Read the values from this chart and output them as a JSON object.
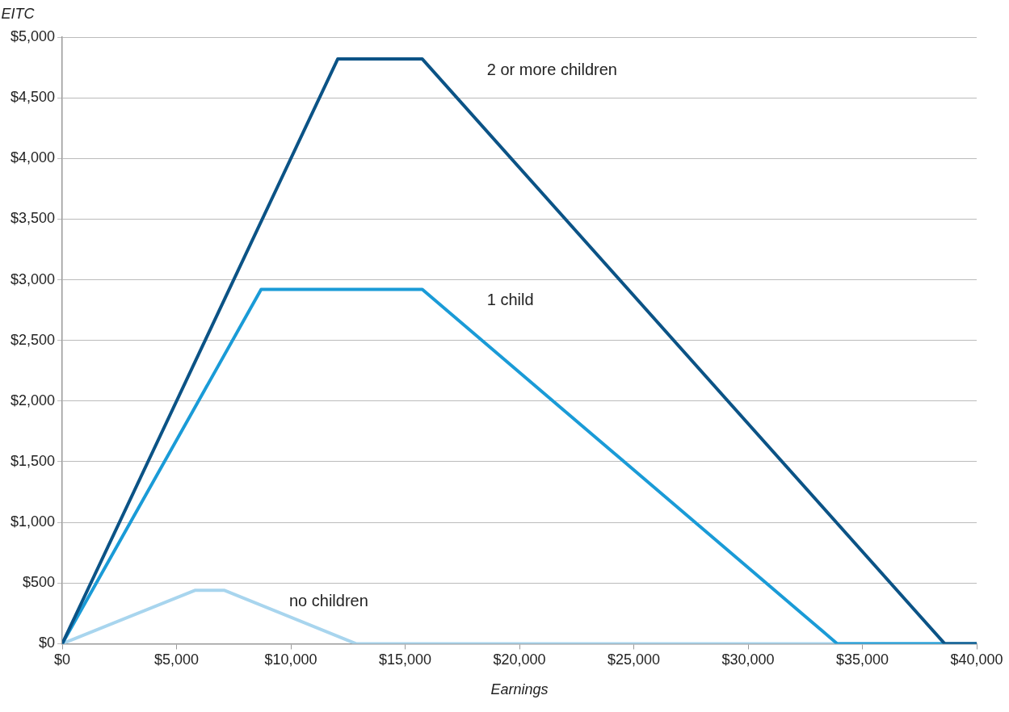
{
  "chart_data": {
    "type": "line",
    "xlabel": "Earnings",
    "ylabel": "EITC",
    "xlim": [
      0,
      40000
    ],
    "xticks": [
      {
        "value": 0,
        "label": "$0"
      },
      {
        "value": 5000,
        "label": "$5,000"
      },
      {
        "value": 10000,
        "label": "$10,000"
      },
      {
        "value": 15000,
        "label": "$15,000"
      },
      {
        "value": 20000,
        "label": "$20,000"
      },
      {
        "value": 25000,
        "label": "$25,000"
      },
      {
        "value": 30000,
        "label": "$30,000"
      },
      {
        "value": 35000,
        "label": "$35,000"
      },
      {
        "value": 40000,
        "label": "$40,000"
      }
    ],
    "ylim": [
      0,
      5000
    ],
    "yticks": [
      {
        "value": 0,
        "label": "$0"
      },
      {
        "value": 500,
        "label": "$500"
      },
      {
        "value": 1000,
        "label": "$1,000"
      },
      {
        "value": 1500,
        "label": "$1,500"
      },
      {
        "value": 2000,
        "label": "$2,000"
      },
      {
        "value": 2500,
        "label": "$2,500"
      },
      {
        "value": 3000,
        "label": "$3,000"
      },
      {
        "value": 3500,
        "label": "$3,500"
      },
      {
        "value": 4000,
        "label": "$4,000"
      },
      {
        "value": 4500,
        "label": "$4,500"
      },
      {
        "value": 5000,
        "label": "$5,000"
      }
    ],
    "grid": "y",
    "legend": false,
    "marker": "none",
    "line_style": "solid",
    "series": [
      {
        "name": "2 or more children",
        "color": "#0b5386",
        "x": [
          0,
          12050,
          15750,
          38600,
          40000
        ],
        "values": [
          0,
          4820,
          4820,
          0,
          0
        ]
      },
      {
        "name": "1 child",
        "color": "#1a9bd7",
        "x": [
          0,
          8700,
          15750,
          33900,
          40000
        ],
        "values": [
          0,
          2920,
          2920,
          0,
          0
        ]
      },
      {
        "name": "no children",
        "color": "#a8d5ee",
        "x": [
          0,
          5800,
          7100,
          12850,
          40000
        ],
        "values": [
          0,
          440,
          440,
          0,
          0
        ]
      }
    ]
  }
}
